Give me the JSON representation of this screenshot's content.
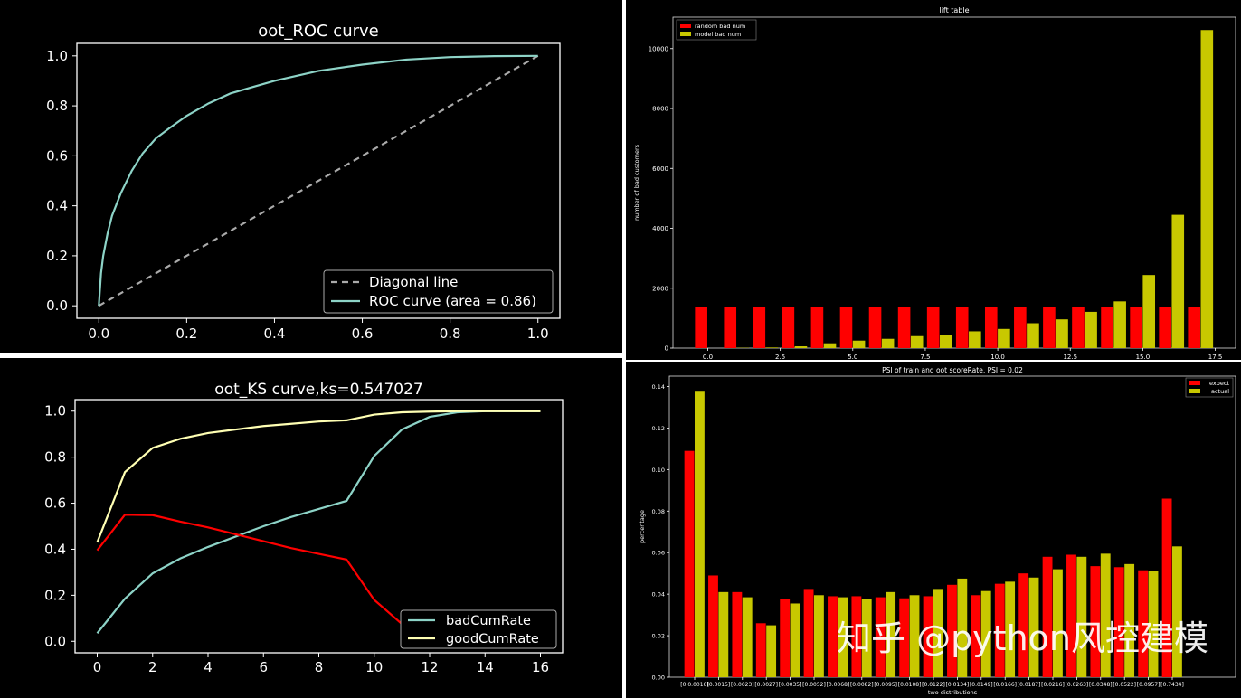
{
  "watermark": "知乎 @python风控建模",
  "chart_data": [
    {
      "id": "roc",
      "type": "line",
      "title": "oot_ROC curve",
      "xlabel": "",
      "ylabel": "",
      "xlim": [
        -0.05,
        1.05
      ],
      "ylim": [
        -0.05,
        1.05
      ],
      "xticks": [
        "0.0",
        "0.2",
        "0.4",
        "0.6",
        "0.8",
        "1.0"
      ],
      "yticks": [
        "0.0",
        "0.2",
        "0.4",
        "0.6",
        "0.8",
        "1.0"
      ],
      "legend_position": "bottom-right",
      "series": [
        {
          "name": "Diagonal line",
          "color": "#aaaaaa",
          "dashed": true,
          "x": [
            0,
            1
          ],
          "y": [
            0,
            1
          ]
        },
        {
          "name": "ROC curve (area = 0.86)",
          "color": "#8dd3c7",
          "x": [
            0,
            0.005,
            0.01,
            0.02,
            0.03,
            0.05,
            0.075,
            0.1,
            0.13,
            0.16,
            0.2,
            0.25,
            0.3,
            0.35,
            0.4,
            0.5,
            0.6,
            0.7,
            0.8,
            0.9,
            1.0
          ],
          "y": [
            0,
            0.13,
            0.2,
            0.29,
            0.36,
            0.45,
            0.54,
            0.61,
            0.67,
            0.71,
            0.76,
            0.81,
            0.85,
            0.875,
            0.9,
            0.94,
            0.965,
            0.985,
            0.995,
            0.999,
            1.0
          ]
        }
      ]
    },
    {
      "id": "lift",
      "type": "bar",
      "title": "lift table",
      "xlabel": "",
      "ylabel": "number of bad customers",
      "xlim": [
        -1.2,
        18.2
      ],
      "ylim": [
        0,
        11050
      ],
      "xticks": [
        "0.0",
        "2.5",
        "5.0",
        "7.5",
        "10.0",
        "12.5",
        "15.0",
        "17.5"
      ],
      "yticks": [
        "0",
        "2000",
        "4000",
        "6000",
        "8000",
        "10000"
      ],
      "legend_position": "top-left",
      "categories": [
        0,
        1,
        2,
        3,
        4,
        5,
        6,
        7,
        8,
        9,
        10,
        11,
        12,
        13,
        14,
        15,
        16,
        17
      ],
      "series": [
        {
          "name": "random bad num",
          "color": "#ff0000",
          "values": [
            1380,
            1380,
            1380,
            1380,
            1380,
            1380,
            1380,
            1380,
            1380,
            1380,
            1380,
            1380,
            1380,
            1380,
            1380,
            1380,
            1380,
            1380
          ]
        },
        {
          "name": "model bad num",
          "color": "#c8c800",
          "values": [
            0,
            10,
            20,
            60,
            160,
            250,
            310,
            400,
            450,
            560,
            640,
            830,
            960,
            1210,
            1560,
            2440,
            4450,
            10620
          ]
        }
      ]
    },
    {
      "id": "ks",
      "type": "line",
      "title": "oot_KS curve,ks=0.547027",
      "xlabel": "",
      "ylabel": "",
      "xlim": [
        -0.8,
        16.8
      ],
      "ylim": [
        -0.05,
        1.05
      ],
      "xticks": [
        "0",
        "2",
        "4",
        "6",
        "8",
        "10",
        "12",
        "14",
        "16"
      ],
      "yticks": [
        "0.0",
        "0.2",
        "0.4",
        "0.6",
        "0.8",
        "1.0"
      ],
      "legend_position": "bottom-right",
      "series": [
        {
          "name": "badCumRate",
          "color": "#8dd3c7",
          "in_legend": true,
          "x": [
            0,
            1,
            2,
            3,
            4,
            5,
            6,
            7,
            8,
            9,
            10,
            11,
            12,
            13,
            14,
            15,
            16
          ],
          "y": [
            0.035,
            0.185,
            0.295,
            0.36,
            0.41,
            0.455,
            0.5,
            0.54,
            0.575,
            0.61,
            0.805,
            0.92,
            0.975,
            0.995,
            1.0,
            1.0,
            1.0
          ]
        },
        {
          "name": "goodCumRate",
          "color": "#ffffb3",
          "in_legend": true,
          "x": [
            0,
            1,
            2,
            3,
            4,
            5,
            6,
            7,
            8,
            9,
            10,
            11,
            12,
            13,
            14,
            15,
            16
          ],
          "y": [
            0.43,
            0.735,
            0.84,
            0.88,
            0.905,
            0.92,
            0.935,
            0.945,
            0.955,
            0.96,
            0.985,
            0.995,
            0.998,
            1.0,
            1.0,
            1.0,
            1.0
          ]
        },
        {
          "name": "",
          "color": "#ff0000",
          "in_legend": false,
          "x": [
            0,
            1,
            2,
            3,
            4,
            5,
            6,
            7,
            8,
            9,
            10,
            11,
            12
          ],
          "y": [
            0.395,
            0.55,
            0.548,
            0.52,
            0.495,
            0.465,
            0.435,
            0.405,
            0.38,
            0.355,
            0.18,
            0.075,
            0.025
          ]
        }
      ]
    },
    {
      "id": "psi",
      "type": "bar",
      "title": "PSI of train and oot scoreRate, PSI = 0.02",
      "xlabel": "two distributions",
      "ylabel": "percentage",
      "ylim": [
        0,
        0.145
      ],
      "yticks": [
        "0.00",
        "0.02",
        "0.04",
        "0.06",
        "0.08",
        "0.10",
        "0.12",
        "0.14"
      ],
      "legend_position": "top-right",
      "categories": [
        "[0.0.0016]",
        "[0.0015]",
        "[0.0023]",
        "[0.0027]",
        "[0.0035]",
        "[0.0052]",
        "[0.0068]",
        "[0.0082]",
        "[0.0095]",
        "[0.0108]",
        "[0.0122]",
        "[0.0134]",
        "[0.0149]",
        "[0.0166]",
        "[0.0187]",
        "[0.0216]",
        "[0.0263]",
        "[0.0348]",
        "[0.0522]",
        "[0.0957]",
        "[0.7434]"
      ],
      "series": [
        {
          "name": "expect",
          "color": "#ff0000",
          "values": [
            0.109,
            0.049,
            0.041,
            0.026,
            0.0375,
            0.0425,
            0.039,
            0.039,
            0.0385,
            0.038,
            0.039,
            0.0445,
            0.0395,
            0.045,
            0.05,
            0.058,
            0.059,
            0.0535,
            0.053,
            0.0515,
            0.086
          ]
        },
        {
          "name": "actual",
          "color": "#c8c800",
          "values": [
            0.1375,
            0.041,
            0.0385,
            0.025,
            0.0355,
            0.0395,
            0.0385,
            0.0375,
            0.041,
            0.0395,
            0.0425,
            0.0475,
            0.0415,
            0.046,
            0.048,
            0.052,
            0.058,
            0.0595,
            0.0545,
            0.051,
            0.063
          ]
        }
      ]
    }
  ]
}
